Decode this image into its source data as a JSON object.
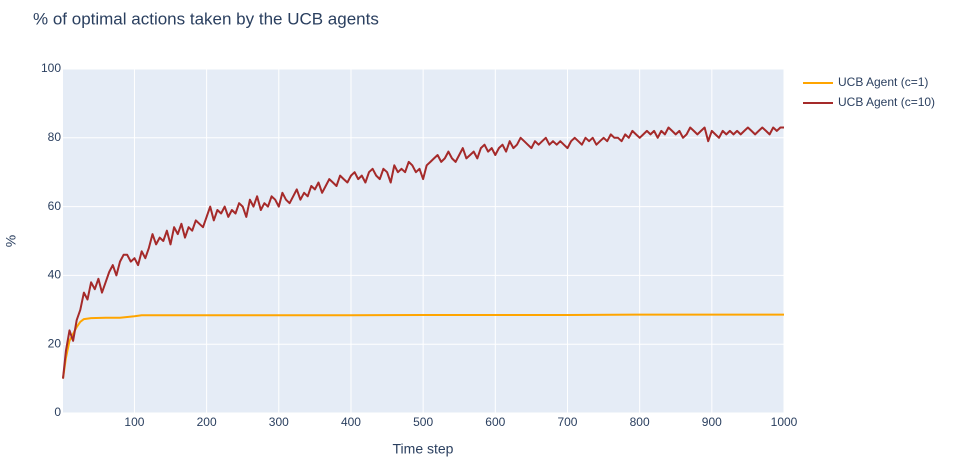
{
  "chart_data": {
    "type": "line",
    "title": "% of optimal actions taken by the UCB agents",
    "xlabel": "Time step",
    "ylabel": "%",
    "xlim": [
      1,
      1000
    ],
    "ylim": [
      0,
      100
    ],
    "x_ticks": [
      100,
      200,
      300,
      400,
      500,
      600,
      700,
      800,
      900,
      1000
    ],
    "y_ticks": [
      0,
      20,
      40,
      60,
      80,
      100
    ],
    "grid": true,
    "legend": "top-right, outside plot",
    "background": "#e5ecf6",
    "series": [
      {
        "name": "UCB Agent (c=1)",
        "color": "#ffa500",
        "x": [
          1,
          5,
          10,
          15,
          20,
          25,
          30,
          40,
          60,
          80,
          90,
          100,
          110,
          150,
          200,
          300,
          400,
          500,
          600,
          700,
          800,
          900,
          1000
        ],
        "y": [
          10,
          16,
          21,
          23,
          25,
          26.5,
          27.3,
          27.6,
          27.7,
          27.7,
          27.9,
          28.1,
          28.4,
          28.4,
          28.4,
          28.4,
          28.4,
          28.5,
          28.5,
          28.5,
          28.6,
          28.6,
          28.6
        ]
      },
      {
        "name": "UCB Agent (c=10)",
        "color": "#a52a2a",
        "x": [
          1,
          5,
          10,
          15,
          20,
          25,
          30,
          35,
          40,
          45,
          50,
          55,
          60,
          65,
          70,
          75,
          80,
          85,
          90,
          95,
          100,
          105,
          110,
          115,
          120,
          125,
          130,
          135,
          140,
          145,
          150,
          155,
          160,
          165,
          170,
          175,
          180,
          185,
          190,
          195,
          200,
          205,
          210,
          215,
          220,
          225,
          230,
          235,
          240,
          245,
          250,
          255,
          260,
          265,
          270,
          275,
          280,
          285,
          290,
          295,
          300,
          305,
          310,
          315,
          320,
          325,
          330,
          335,
          340,
          345,
          350,
          355,
          360,
          365,
          370,
          375,
          380,
          385,
          390,
          395,
          400,
          405,
          410,
          415,
          420,
          425,
          430,
          435,
          440,
          445,
          450,
          455,
          460,
          465,
          470,
          475,
          480,
          485,
          490,
          495,
          500,
          505,
          510,
          515,
          520,
          525,
          530,
          535,
          540,
          545,
          550,
          555,
          560,
          565,
          570,
          575,
          580,
          585,
          590,
          595,
          600,
          605,
          610,
          615,
          620,
          625,
          630,
          635,
          640,
          645,
          650,
          655,
          660,
          665,
          670,
          675,
          680,
          685,
          690,
          695,
          700,
          705,
          710,
          715,
          720,
          725,
          730,
          735,
          740,
          745,
          750,
          755,
          760,
          765,
          770,
          775,
          780,
          785,
          790,
          795,
          800,
          805,
          810,
          815,
          820,
          825,
          830,
          835,
          840,
          845,
          850,
          855,
          860,
          865,
          870,
          875,
          880,
          885,
          890,
          895,
          900,
          905,
          910,
          915,
          920,
          925,
          930,
          935,
          940,
          945,
          950,
          955,
          960,
          965,
          970,
          975,
          980,
          985,
          990,
          995,
          1000
        ],
        "y": [
          10,
          18,
          24,
          21,
          27,
          30,
          35,
          33,
          38,
          36,
          39,
          35,
          38,
          41,
          43,
          40,
          44,
          46,
          46,
          44,
          45,
          43,
          47,
          45,
          48,
          52,
          49,
          51,
          50,
          53,
          49,
          54,
          52,
          55,
          51,
          54,
          53,
          56,
          55,
          54,
          57,
          60,
          56,
          59,
          58,
          60,
          57,
          59,
          58,
          61,
          60,
          57,
          62,
          60,
          63,
          59,
          61,
          60,
          63,
          62,
          60,
          64,
          62,
          61,
          63,
          65,
          62,
          64,
          63,
          66,
          65,
          67,
          64,
          66,
          68,
          67,
          66,
          69,
          68,
          67,
          69,
          70,
          68,
          69,
          67,
          70,
          71,
          69,
          68,
          71,
          70,
          67,
          72,
          70,
          71,
          70,
          73,
          72,
          70,
          71,
          68,
          72,
          73,
          74,
          75,
          73,
          74,
          76,
          74,
          73,
          75,
          77,
          74,
          75,
          76,
          74,
          77,
          78,
          76,
          77,
          75,
          77,
          78,
          76,
          79,
          77,
          78,
          80,
          79,
          78,
          77,
          79,
          78,
          79,
          80,
          78,
          79,
          78,
          79,
          78,
          77,
          79,
          80,
          79,
          78,
          80,
          79,
          80,
          78,
          79,
          80,
          79,
          81,
          80,
          80,
          79,
          81,
          80,
          82,
          81,
          80,
          81,
          82,
          81,
          82,
          80,
          82,
          81,
          83,
          82,
          81,
          82,
          80,
          81,
          83,
          82,
          81,
          82,
          83,
          79,
          82,
          81,
          80,
          82,
          81,
          82,
          81,
          82,
          81,
          82,
          83,
          82,
          81,
          82,
          83,
          82,
          81,
          83,
          82,
          83,
          83
        ]
      }
    ]
  }
}
